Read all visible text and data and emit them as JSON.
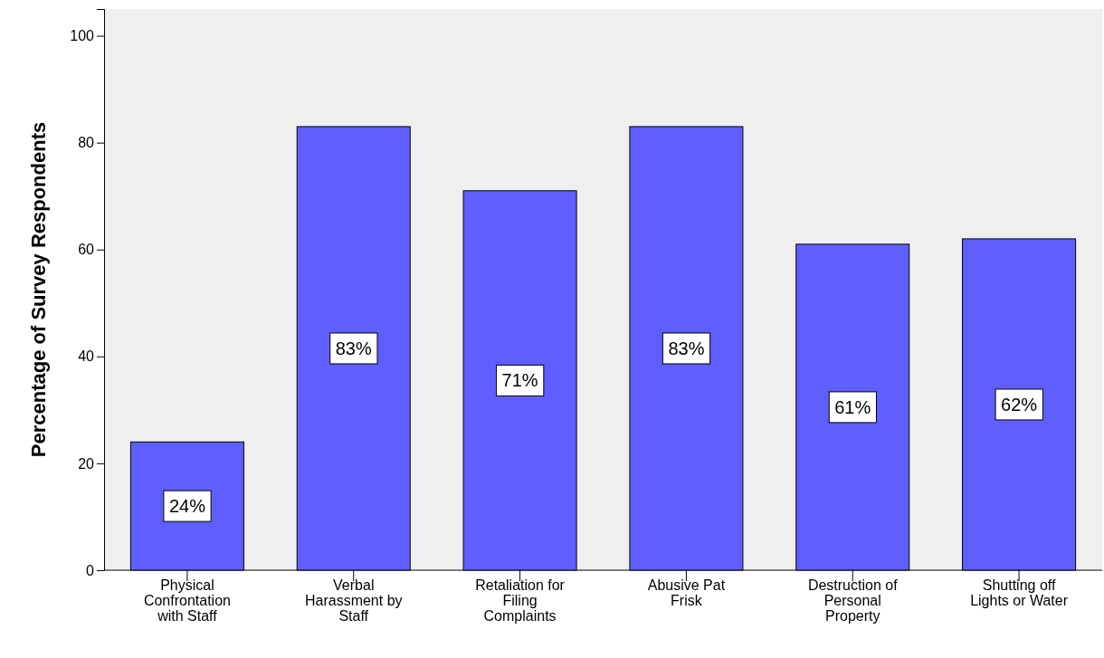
{
  "chart_data": {
    "type": "bar",
    "ylabel": "Percentage of Survey Respondents",
    "categories": [
      "Physical Confrontation with Staff",
      "Verbal Harassment by Staff",
      "Retaliation for Filing Complaints",
      "Abusive Pat Frisk",
      "Destruction of Personal Property",
      "Shutting off Lights or Water"
    ],
    "values": [
      24,
      83,
      71,
      83,
      61,
      62
    ],
    "value_labels": [
      "24%",
      "83%",
      "71%",
      "83%",
      "61%",
      "62%"
    ],
    "color": "#5f5fff",
    "ylim": [
      0,
      105
    ],
    "yticks": [
      0,
      20,
      40,
      60,
      80,
      100
    ]
  }
}
